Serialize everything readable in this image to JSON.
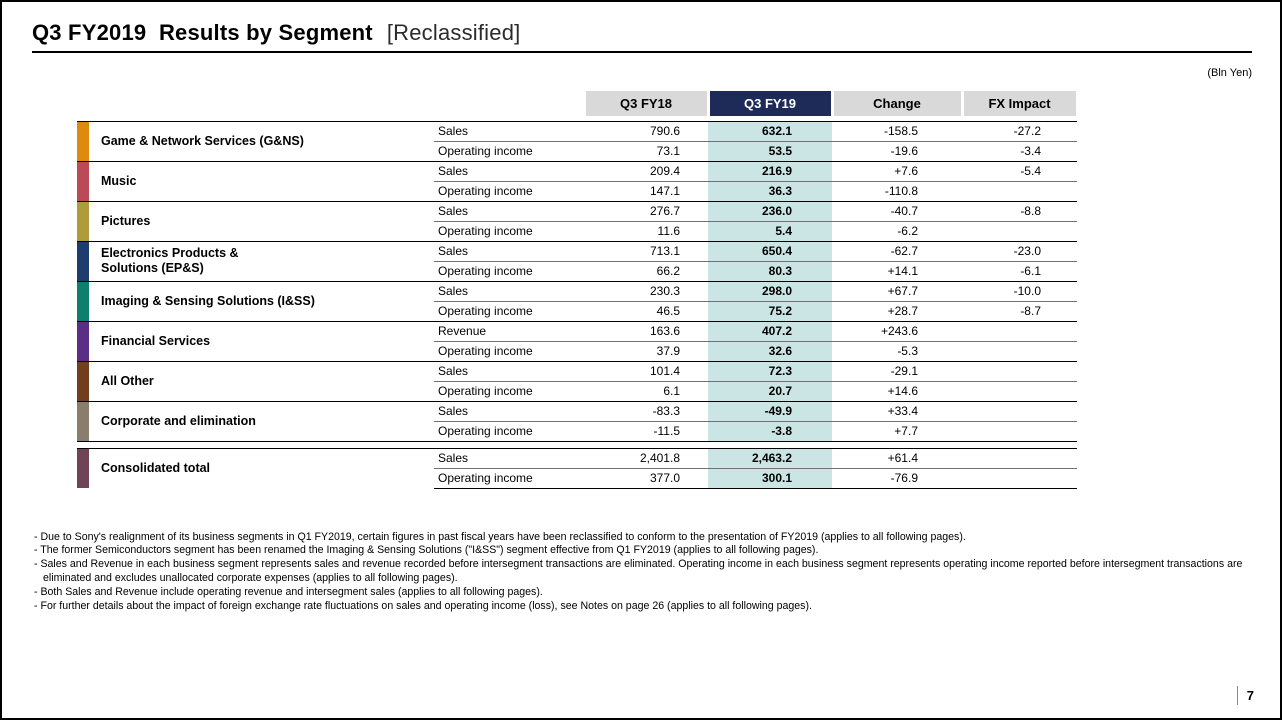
{
  "slide": {
    "title": "Q3 FY2019  Results by Segment",
    "title_suffix": "[Reclassified]",
    "unit_note": "(Bln Yen)",
    "page_number": "7"
  },
  "colors": {
    "header_bg": "#d9d9d9",
    "fy19_header_bg": "#1e2b58",
    "fy19_col_bg": "#cbe5e4"
  },
  "table": {
    "columns": [
      "Q3 FY18",
      "Q3 FY19",
      "Change",
      "FX Impact"
    ],
    "segments": [
      {
        "name": "Game & Network Services (G&NS)",
        "color": "#dd8a0d",
        "rows": [
          {
            "metric": "Sales",
            "fy18": "790.6",
            "fy19": "632.1",
            "change": "-158.5",
            "fx": "-27.2"
          },
          {
            "metric": "Operating income",
            "fy18": "73.1",
            "fy19": "53.5",
            "change": "-19.6",
            "fx": "-3.4"
          }
        ]
      },
      {
        "name": "Music",
        "color": "#b94a56",
        "rows": [
          {
            "metric": "Sales",
            "fy18": "209.4",
            "fy19": "216.9",
            "change": "+7.6",
            "fx": "-5.4"
          },
          {
            "metric": "Operating income",
            "fy18": "147.1",
            "fy19": "36.3",
            "change": "-110.8",
            "fx": ""
          }
        ]
      },
      {
        "name": "Pictures",
        "color": "#af9b3c",
        "rows": [
          {
            "metric": "Sales",
            "fy18": "276.7",
            "fy19": "236.0",
            "change": "-40.7",
            "fx": "-8.8"
          },
          {
            "metric": "Operating income",
            "fy18": "11.6",
            "fy19": "5.4",
            "change": "-6.2",
            "fx": ""
          }
        ]
      },
      {
        "name": "Electronics Products &\nSolutions (EP&S)",
        "color": "#1f3c6e",
        "rows": [
          {
            "metric": "Sales",
            "fy18": "713.1",
            "fy19": "650.4",
            "change": "-62.7",
            "fx": "-23.0"
          },
          {
            "metric": "Operating income",
            "fy18": "66.2",
            "fy19": "80.3",
            "change": "+14.1",
            "fx": "-6.1"
          }
        ]
      },
      {
        "name": "Imaging & Sensing Solutions (I&SS)",
        "color": "#0c7f6e",
        "rows": [
          {
            "metric": "Sales",
            "fy18": "230.3",
            "fy19": "298.0",
            "change": "+67.7",
            "fx": "-10.0"
          },
          {
            "metric": "Operating income",
            "fy18": "46.5",
            "fy19": "75.2",
            "change": "+28.7",
            "fx": "-8.7"
          }
        ]
      },
      {
        "name": "Financial Services",
        "color": "#5b2d84",
        "rows": [
          {
            "metric": "Revenue",
            "fy18": "163.6",
            "fy19": "407.2",
            "change": "+243.6",
            "fx": ""
          },
          {
            "metric": "Operating income",
            "fy18": "37.9",
            "fy19": "32.6",
            "change": "-5.3",
            "fx": ""
          }
        ]
      },
      {
        "name": "All Other",
        "color": "#713f1d",
        "rows": [
          {
            "metric": "Sales",
            "fy18": "101.4",
            "fy19": "72.3",
            "change": "-29.1",
            "fx": ""
          },
          {
            "metric": "Operating income",
            "fy18": "6.1",
            "fy19": "20.7",
            "change": "+14.6",
            "fx": ""
          }
        ]
      },
      {
        "name": "Corporate and elimination",
        "color": "#8a7d6e",
        "rows": [
          {
            "metric": "Sales",
            "fy18": "-83.3",
            "fy19": "-49.9",
            "change": "+33.4",
            "fx": ""
          },
          {
            "metric": "Operating income",
            "fy18": "-11.5",
            "fy19": "-3.8",
            "change": "+7.7",
            "fx": ""
          }
        ]
      }
    ],
    "total": {
      "name": "Consolidated total",
      "color": "#6e4456",
      "rows": [
        {
          "metric": "Sales",
          "fy18": "2,401.8",
          "fy19": "2,463.2",
          "change": "+61.4",
          "fx": ""
        },
        {
          "metric": "Operating income",
          "fy18": "377.0",
          "fy19": "300.1",
          "change": "-76.9",
          "fx": ""
        }
      ]
    }
  },
  "footnotes": [
    "- Due to Sony's realignment of its business segments in Q1 FY2019, certain figures in past fiscal years have been reclassified to conform to the presentation of FY2019 (applies to all following pages).",
    "- The former Semiconductors segment has been renamed the Imaging & Sensing Solutions (\"I&SS\") segment effective from Q1 FY2019 (applies to all following pages).",
    "- Sales and Revenue in each business segment represents sales and revenue recorded before intersegment transactions are eliminated. Operating income in each business segment represents operating income reported before intersegment transactions are eliminated and excludes unallocated corporate expenses (applies to all following pages).",
    "- Both Sales and Revenue include operating revenue and intersegment sales (applies to all following pages).",
    "- For further details about the impact of foreign exchange rate fluctuations on sales and operating income (loss), see Notes on page 26 (applies to all following pages)."
  ]
}
